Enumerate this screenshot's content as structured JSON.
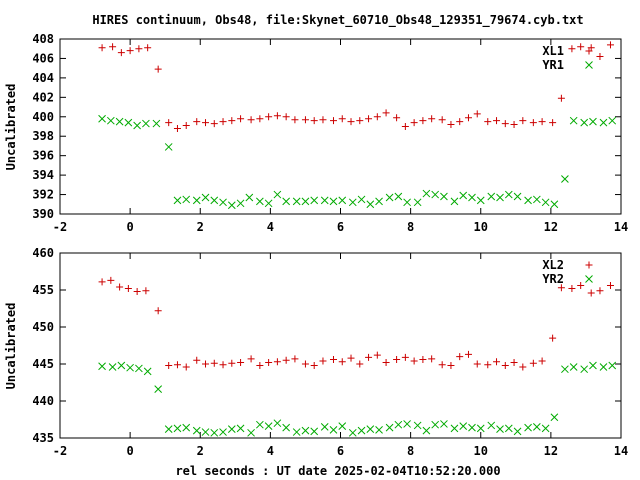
{
  "chart_data": {
    "title": "HIRES continuum, Obs48, file:Skynet_60710_Obs48_129351_79674.cyb.txt",
    "xlabel": "rel seconds : UT date 2025-02-04T10:52:20.000",
    "colors": {
      "XL": "#cc0000",
      "YR": "#00aa00"
    },
    "panels": [
      {
        "type": "scatter",
        "ylabel": "Uncalibrated",
        "xlim": [
          -2,
          14
        ],
        "ylim": [
          390,
          408
        ],
        "xticks": [
          -2,
          0,
          2,
          4,
          6,
          8,
          10,
          12,
          14
        ],
        "yticks": [
          390,
          392,
          394,
          396,
          398,
          400,
          402,
          404,
          406,
          408
        ],
        "legend_position": "top-right",
        "series": [
          {
            "name": "XL1",
            "marker": "plus",
            "color": "#cc0000",
            "x": [
              -0.8,
              -0.5,
              -0.25,
              0,
              0.25,
              0.5,
              0.8,
              1.1,
              1.35,
              1.6,
              1.9,
              2.15,
              2.4,
              2.65,
              2.9,
              3.15,
              3.45,
              3.7,
              3.95,
              4.2,
              4.45,
              4.7,
              5.0,
              5.25,
              5.5,
              5.8,
              6.05,
              6.3,
              6.55,
              6.8,
              7.05,
              7.3,
              7.6,
              7.85,
              8.1,
              8.35,
              8.6,
              8.9,
              9.15,
              9.4,
              9.65,
              9.9,
              10.2,
              10.45,
              10.7,
              10.95,
              11.2,
              11.5,
              11.75,
              12.05,
              12.3,
              12.6,
              12.85,
              13.15,
              13.4,
              13.7
            ],
            "y": [
              407.1,
              407.2,
              406.6,
              406.8,
              407.0,
              407.1,
              404.9,
              399.4,
              398.8,
              399.1,
              399.5,
              399.4,
              399.3,
              399.5,
              399.6,
              399.8,
              399.7,
              399.8,
              400.0,
              400.1,
              400.0,
              399.7,
              399.7,
              399.6,
              399.7,
              399.6,
              399.8,
              399.5,
              399.6,
              399.8,
              400.0,
              400.4,
              399.9,
              399.0,
              399.4,
              399.6,
              399.8,
              399.7,
              399.2,
              399.5,
              399.9,
              400.3,
              399.5,
              399.6,
              399.3,
              399.2,
              399.6,
              399.4,
              399.5,
              399.4,
              401.9,
              407.0,
              407.2,
              407.1,
              406.2,
              407.4
            ]
          },
          {
            "name": "YR1",
            "marker": "cross",
            "color": "#00aa00",
            "x": [
              -0.8,
              -0.55,
              -0.3,
              -0.05,
              0.2,
              0.45,
              0.75,
              1.1,
              1.35,
              1.6,
              1.9,
              2.15,
              2.4,
              2.65,
              2.9,
              3.15,
              3.4,
              3.7,
              3.95,
              4.2,
              4.45,
              4.75,
              5.0,
              5.25,
              5.55,
              5.8,
              6.05,
              6.35,
              6.6,
              6.85,
              7.1,
              7.4,
              7.65,
              7.9,
              8.2,
              8.45,
              8.7,
              8.95,
              9.25,
              9.5,
              9.75,
              10.0,
              10.3,
              10.55,
              10.8,
              11.05,
              11.35,
              11.6,
              11.85,
              12.1,
              12.4,
              12.65,
              12.95,
              13.2,
              13.5,
              13.75
            ],
            "y": [
              399.8,
              399.6,
              399.5,
              399.4,
              399.1,
              399.3,
              399.3,
              396.9,
              391.4,
              391.5,
              391.4,
              391.7,
              391.4,
              391.2,
              390.9,
              391.1,
              391.7,
              391.3,
              391.1,
              392.0,
              391.3,
              391.3,
              391.3,
              391.4,
              391.4,
              391.3,
              391.4,
              391.2,
              391.5,
              391.0,
              391.3,
              391.7,
              391.8,
              391.2,
              391.2,
              392.1,
              392.0,
              391.8,
              391.3,
              391.9,
              391.7,
              391.4,
              391.8,
              391.7,
              392.0,
              391.8,
              391.4,
              391.5,
              391.2,
              391.0,
              393.6,
              399.6,
              399.4,
              399.5,
              399.4,
              399.6
            ]
          }
        ]
      },
      {
        "type": "scatter",
        "ylabel": "Uncalibrated",
        "xlim": [
          -2,
          14
        ],
        "ylim": [
          435,
          460
        ],
        "xticks": [
          -2,
          0,
          2,
          4,
          6,
          8,
          10,
          12,
          14
        ],
        "yticks": [
          435,
          440,
          445,
          450,
          455,
          460
        ],
        "legend_position": "top-right",
        "series": [
          {
            "name": "XL2",
            "marker": "plus",
            "color": "#cc0000",
            "x": [
              -0.8,
              -0.55,
              -0.3,
              -0.05,
              0.2,
              0.45,
              0.8,
              1.1,
              1.35,
              1.6,
              1.9,
              2.15,
              2.4,
              2.65,
              2.9,
              3.15,
              3.45,
              3.7,
              3.95,
              4.2,
              4.45,
              4.7,
              5.0,
              5.25,
              5.5,
              5.8,
              6.05,
              6.3,
              6.55,
              6.8,
              7.05,
              7.3,
              7.6,
              7.85,
              8.1,
              8.35,
              8.6,
              8.9,
              9.15,
              9.4,
              9.65,
              9.9,
              10.2,
              10.45,
              10.7,
              10.95,
              11.2,
              11.5,
              11.75,
              12.05,
              12.3,
              12.6,
              12.85,
              13.15,
              13.4,
              13.7
            ],
            "y": [
              456.1,
              456.3,
              455.4,
              455.2,
              454.8,
              454.9,
              452.2,
              444.8,
              444.9,
              444.6,
              445.5,
              445.0,
              445.1,
              444.9,
              445.1,
              445.2,
              445.7,
              444.8,
              445.2,
              445.3,
              445.5,
              445.7,
              445.0,
              444.8,
              445.4,
              445.6,
              445.3,
              445.8,
              445.0,
              445.9,
              446.2,
              445.2,
              445.6,
              445.9,
              445.4,
              445.6,
              445.7,
              444.9,
              444.8,
              446.0,
              446.3,
              445.0,
              444.9,
              445.3,
              444.8,
              445.2,
              444.6,
              445.1,
              445.4,
              448.5,
              455.3,
              455.2,
              455.6,
              454.6,
              454.9,
              455.6
            ]
          },
          {
            "name": "YR2",
            "marker": "cross",
            "color": "#00aa00",
            "x": [
              -0.8,
              -0.5,
              -0.25,
              0,
              0.25,
              0.5,
              0.8,
              1.1,
              1.35,
              1.6,
              1.9,
              2.15,
              2.4,
              2.65,
              2.9,
              3.15,
              3.45,
              3.7,
              3.95,
              4.2,
              4.45,
              4.75,
              5.0,
              5.25,
              5.55,
              5.8,
              6.05,
              6.35,
              6.6,
              6.85,
              7.1,
              7.4,
              7.65,
              7.9,
              8.2,
              8.45,
              8.7,
              8.95,
              9.25,
              9.5,
              9.75,
              10.0,
              10.3,
              10.55,
              10.8,
              11.05,
              11.35,
              11.6,
              11.85,
              12.1,
              12.4,
              12.65,
              12.95,
              13.2,
              13.5,
              13.75
            ],
            "y": [
              444.7,
              444.6,
              444.8,
              444.5,
              444.4,
              444.0,
              441.6,
              436.2,
              436.3,
              436.4,
              436.0,
              435.8,
              435.7,
              435.8,
              436.2,
              436.3,
              435.7,
              436.8,
              436.6,
              437.0,
              436.4,
              435.8,
              436.0,
              435.9,
              436.5,
              436.1,
              436.6,
              435.7,
              436.0,
              436.2,
              436.1,
              436.4,
              436.8,
              436.9,
              436.7,
              436.0,
              436.8,
              436.9,
              436.3,
              436.6,
              436.4,
              436.3,
              436.7,
              436.2,
              436.3,
              435.9,
              436.4,
              436.5,
              436.3,
              437.8,
              444.3,
              444.6,
              444.3,
              444.8,
              444.6,
              444.8
            ]
          }
        ]
      }
    ]
  }
}
